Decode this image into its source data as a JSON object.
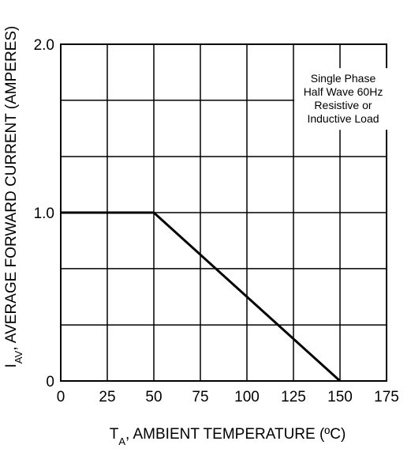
{
  "chart_data": {
    "type": "line",
    "x": [
      0,
      50,
      150
    ],
    "series": [
      {
        "values": [
          1.0,
          1.0,
          0
        ]
      }
    ],
    "xlim": [
      0,
      175
    ],
    "ylim": [
      0,
      2.0
    ],
    "x_ticks": [
      "0",
      "25",
      "50",
      "75",
      "100",
      "125",
      "150",
      "175"
    ],
    "y_ticks": [
      {
        "label": "0",
        "value": 0
      },
      {
        "label": "1.0",
        "value": 1.0
      },
      {
        "label": "2.0",
        "value": 2.0
      }
    ],
    "y_gridlines": [
      0.333,
      0.667,
      1.0,
      1.333,
      1.667
    ],
    "grid": true,
    "xlabel": {
      "symbol": "T",
      "subscript": "A",
      "text": ",  AMBIENT TEMPERATURE (ºC)"
    },
    "ylabel": {
      "symbol": "I",
      "subscript": "AV",
      "text": ",  AVERAGE FORWARD CURRENT (AMPERES)"
    },
    "annotation": {
      "lines": [
        "Single Phase",
        "Half Wave 60Hz",
        "Resistive or",
        "Inductive Load"
      ]
    },
    "colors": {
      "line": "#000000",
      "grid": "#000000",
      "background": "#ffffff"
    }
  }
}
